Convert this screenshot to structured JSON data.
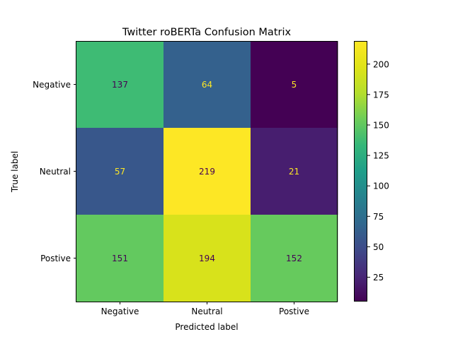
{
  "chart_data": {
    "type": "heatmap",
    "title": "Twitter roBERTa Confusion Matrix",
    "xlabel": "Predicted label",
    "ylabel": "True label",
    "x_categories": [
      "Negative",
      "Neutral",
      "Postive"
    ],
    "y_categories": [
      "Negative",
      "Neutral",
      "Postive"
    ],
    "values": [
      [
        137,
        64,
        5
      ],
      [
        57,
        219,
        21
      ],
      [
        151,
        194,
        152
      ]
    ],
    "colorscale": "viridis",
    "color_range": [
      5,
      219
    ],
    "colorbar_ticks": [
      "25",
      "50",
      "75",
      "100",
      "125",
      "150",
      "175",
      "200"
    ],
    "grid": false,
    "label_colors": {
      "on_dark": "#fde725",
      "on_light": "#440154"
    }
  }
}
